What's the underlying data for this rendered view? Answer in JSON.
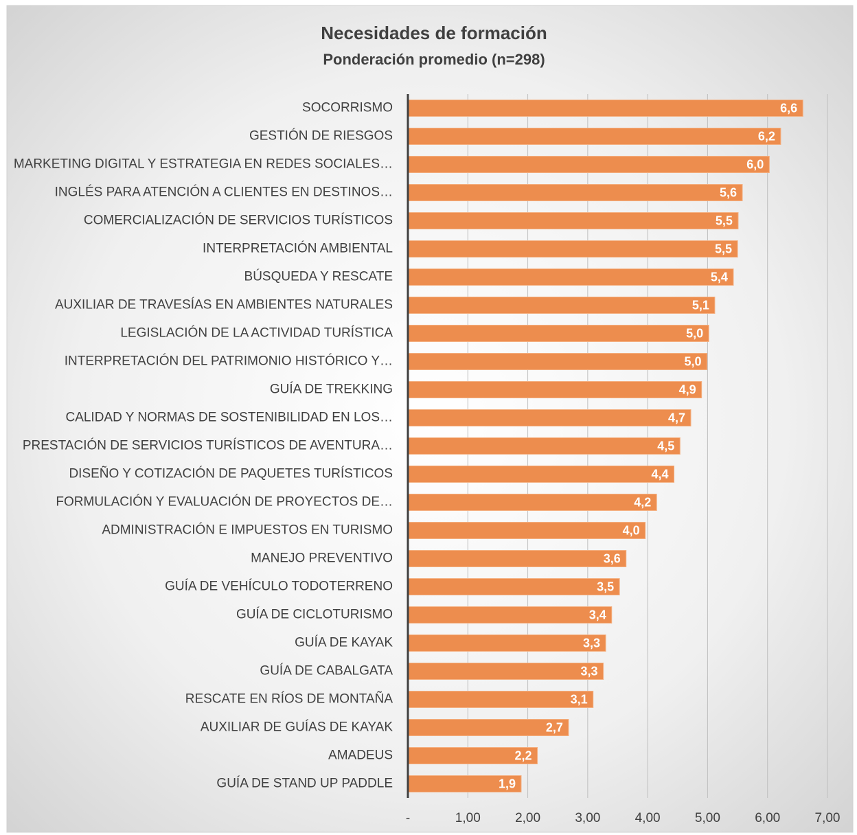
{
  "chart_data": {
    "type": "barh",
    "title": "Necesidades de formación",
    "subtitle": "Ponderación promedio (n=298)",
    "categories": [
      "SOCORRISMO",
      "GESTIÓN DE RIESGOS",
      "MARKETING DIGITAL Y ESTRATEGIA EN REDES SOCIALES…",
      "INGLÉS PARA ATENCIÓN A CLIENTES EN DESTINOS…",
      "COMERCIALIZACIÓN DE SERVICIOS TURÍSTICOS",
      "INTERPRETACIÓN AMBIENTAL",
      "BÚSQUEDA Y RESCATE",
      "AUXILIAR DE TRAVESÍAS EN AMBIENTES NATURALES",
      "LEGISLACIÓN DE LA ACTIVIDAD TURÍSTICA",
      "INTERPRETACIÓN DEL PATRIMONIO HISTÓRICO Y…",
      "GUÍA DE TREKKING",
      "CALIDAD Y NORMAS DE SOSTENIBILIDAD EN LOS…",
      "PRESTACIÓN DE SERVICIOS TURÍSTICOS DE AVENTURA…",
      "DISEÑO Y COTIZACIÓN DE PAQUETES TURÍSTICOS",
      "FORMULACIÓN Y EVALUACIÓN DE PROYECTOS DE…",
      "ADMINISTRACIÓN E IMPUESTOS EN TURISMO",
      "MANEJO PREVENTIVO",
      "GUÍA DE VEHÍCULO TODOTERRENO",
      "GUÍA DE CICLOTURISMO",
      "GUÍA DE KAYAK",
      "GUÍA DE CABALGATA",
      "RESCATE EN RÍOS DE MONTAÑA",
      "AUXILIAR DE GUÍAS DE KAYAK",
      "AMADEUS",
      "GUÍA DE STAND UP PADDLE"
    ],
    "values": [
      6.59,
      6.22,
      6.03,
      5.58,
      5.51,
      5.5,
      5.43,
      5.12,
      5.02,
      4.99,
      4.9,
      4.72,
      4.54,
      4.44,
      4.15,
      3.96,
      3.64,
      3.53,
      3.4,
      3.3,
      3.26,
      3.09,
      2.68,
      2.16,
      1.89
    ],
    "value_labels": [
      "6,6",
      "6,2",
      "6,0",
      "5,6",
      "5,5",
      "5,5",
      "5,4",
      "5,1",
      "5,0",
      "5,0",
      "4,9",
      "4,7",
      "4,5",
      "4,4",
      "4,2",
      "4,0",
      "3,6",
      "3,5",
      "3,4",
      "3,3",
      "3,3",
      "3,1",
      "2,7",
      "2,2",
      "1,9"
    ],
    "color": "#ed8d4e",
    "xlim": [
      0,
      7
    ],
    "xticks": [
      {
        "value": 0,
        "label": "-"
      },
      {
        "value": 1,
        "label": "1,00"
      },
      {
        "value": 2,
        "label": "2,00"
      },
      {
        "value": 3,
        "label": "3,00"
      },
      {
        "value": 4,
        "label": "4,00"
      },
      {
        "value": 5,
        "label": "5,00"
      },
      {
        "value": 6,
        "label": "6,00"
      },
      {
        "value": 7,
        "label": "7,00"
      }
    ],
    "grid": true
  }
}
